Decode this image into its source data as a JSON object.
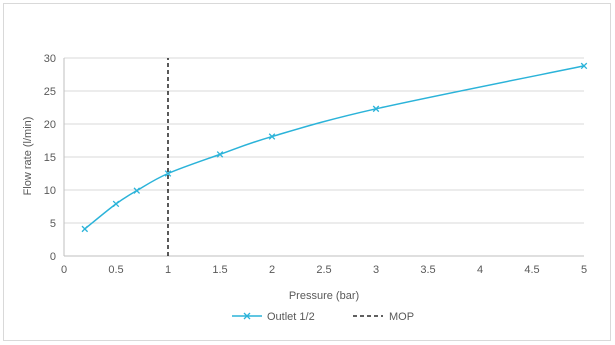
{
  "chart_data": {
    "type": "line",
    "xlabel": "Pressure (bar)",
    "ylabel": "Flow rate (l/min)",
    "xlim": [
      0,
      5
    ],
    "ylim": [
      0,
      30
    ],
    "x_ticks": [
      "0",
      "0.5",
      "1",
      "1.5",
      "2",
      "2.5",
      "3",
      "3.5",
      "4",
      "4.5",
      "5"
    ],
    "y_ticks": [
      "0",
      "5",
      "10",
      "15",
      "20",
      "25",
      "30"
    ],
    "grid": "horizontal",
    "legend_position": "bottom",
    "series": [
      {
        "name": "Outlet 1/2",
        "color": "#2bb3d9",
        "marker": "x",
        "x": [
          0.2,
          0.5,
          0.7,
          1.0,
          1.5,
          2.0,
          3.0,
          5.0
        ],
        "y": [
          4.1,
          7.9,
          9.9,
          12.5,
          15.4,
          18.1,
          22.3,
          28.8
        ]
      },
      {
        "name": "MOP",
        "color": "#000000",
        "style": "dashed",
        "x": [
          1,
          1
        ],
        "y": [
          0,
          30
        ]
      }
    ]
  }
}
